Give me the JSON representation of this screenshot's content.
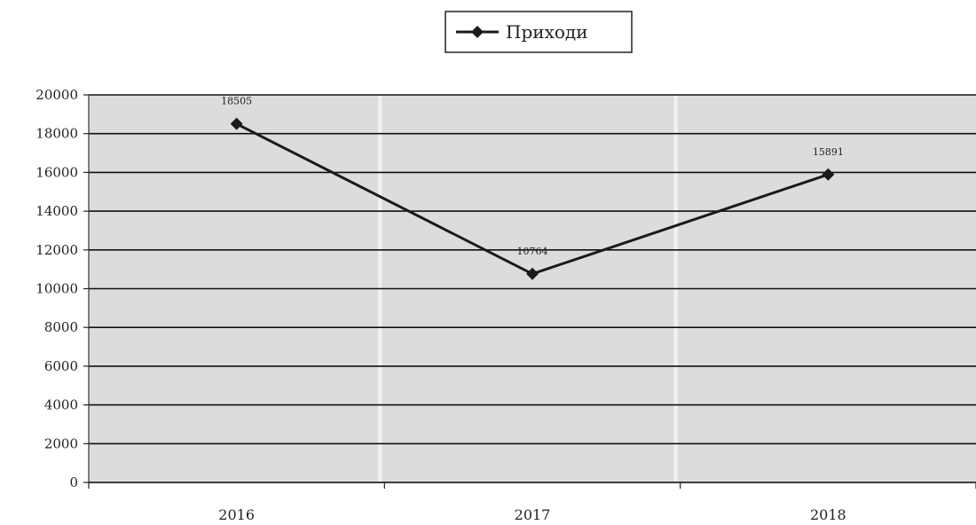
{
  "chart_data": {
    "type": "line",
    "categories": [
      "2016",
      "2017",
      "2018"
    ],
    "series": [
      {
        "name": "Приходи",
        "values": [
          18505,
          10764,
          15891
        ]
      }
    ],
    "data_labels": [
      "18505",
      "10764",
      "15891"
    ],
    "y_ticks": [
      "0",
      "2000",
      "4000",
      "6000",
      "8000",
      "10000",
      "12000",
      "14000",
      "16000",
      "18000",
      "20000"
    ],
    "ylim": [
      0,
      20000
    ],
    "ystep": 2000,
    "grid": true,
    "legend_position": "top-center",
    "title": "",
    "xlabel": "",
    "ylabel": ""
  },
  "colors": {
    "plot_background": "#dcdcdc",
    "line": "#1a1a1a",
    "gridline": "#111111"
  },
  "legend": {
    "label": "Приходи",
    "marker_icon": "diamond-line-icon"
  }
}
